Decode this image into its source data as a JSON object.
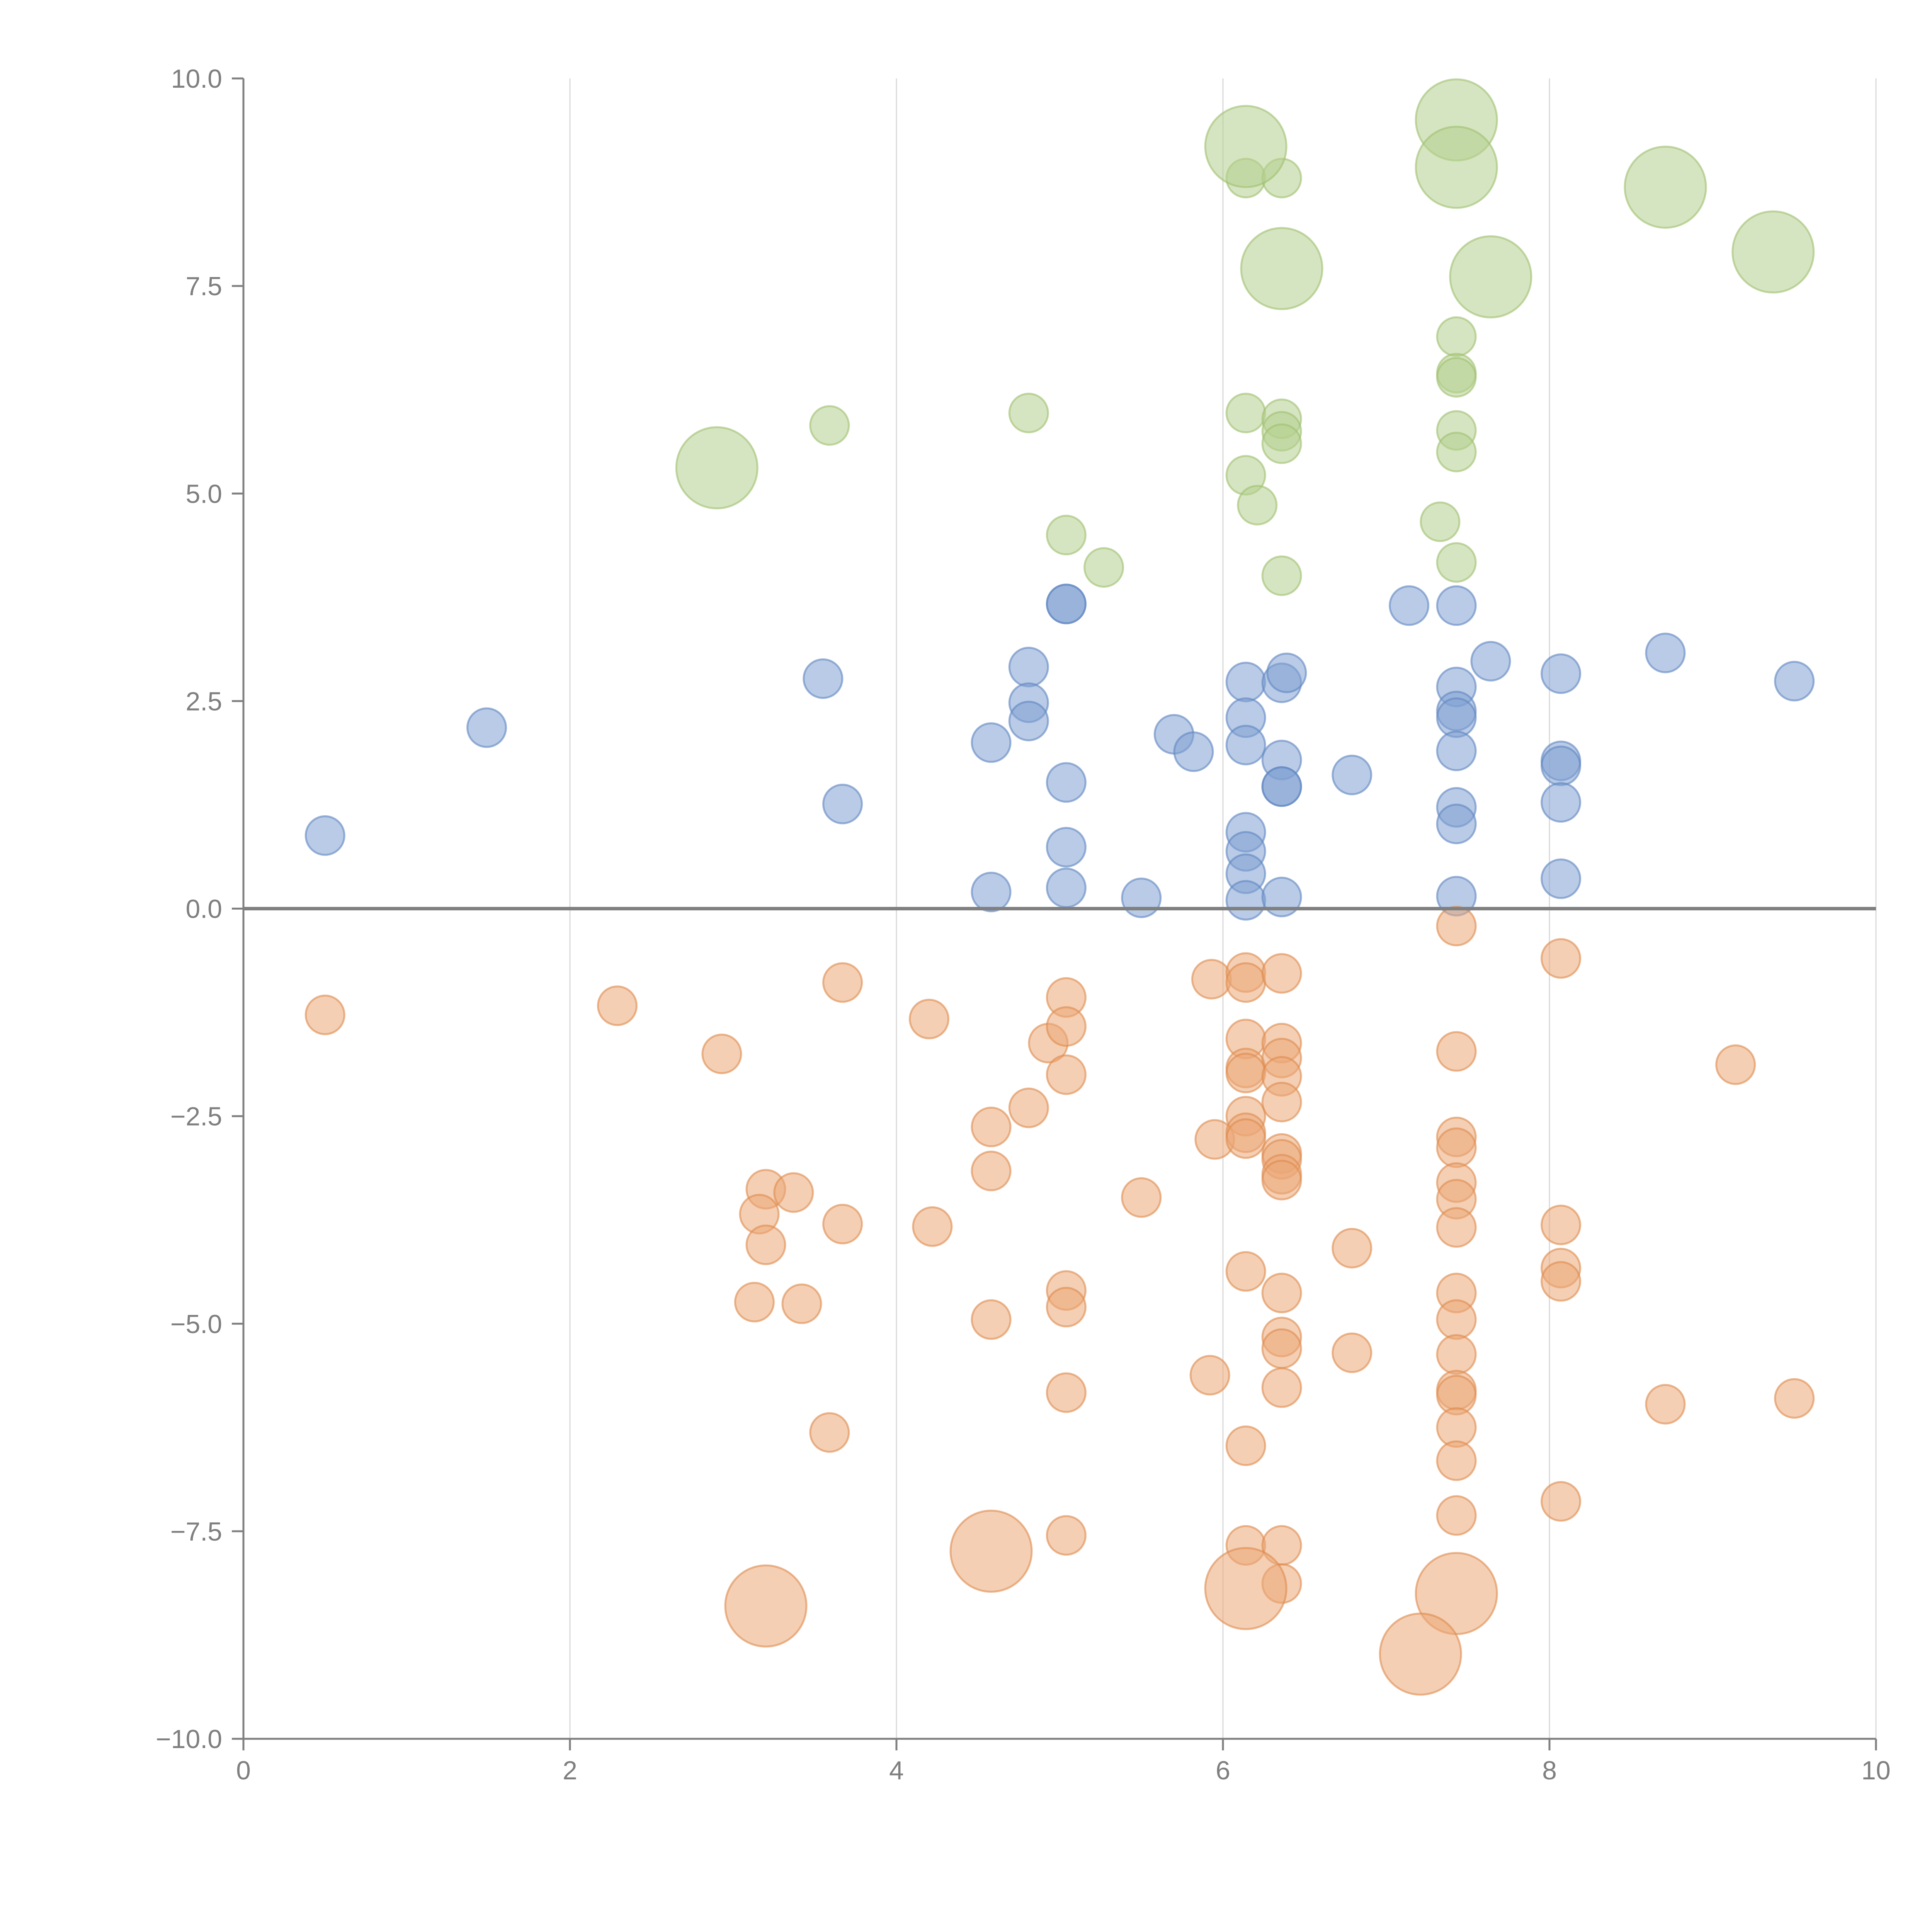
{
  "chart_data": {
    "type": "scatter",
    "title": "",
    "xlabel": "",
    "ylabel": "",
    "xlim": [
      0,
      10
    ],
    "ylim": [
      -10,
      10
    ],
    "x_ticks": [
      "0",
      "2",
      "4",
      "6",
      "8",
      "10"
    ],
    "y_ticks": [
      "10.0",
      "7.5",
      "5.0",
      "2.5",
      "0.0",
      "−2.5",
      "−5.0",
      "−7.5",
      "−10.0"
    ],
    "x_tick_values": [
      0,
      2,
      4,
      6,
      8,
      10
    ],
    "y_tick_values": [
      10,
      7.5,
      5,
      2.5,
      0,
      -2.5,
      -5,
      -7.5,
      -10
    ],
    "grid": "vertical",
    "reference_line_y": 0,
    "colors": {
      "blue": "#7fa1d2",
      "blue_edge": "#5f86c2",
      "orange": "#eba877",
      "orange_edge": "#dd8a4d",
      "green": "#b5d08e",
      "green_edge": "#9fc06f",
      "axis": "#808080",
      "grid": "#d9d9d9",
      "text": "#7f7f7f"
    },
    "series": [
      {
        "name": "blue",
        "color": "blue",
        "points": [
          [
            0.5,
            0.88,
            1
          ],
          [
            1.49,
            2.18,
            1
          ],
          [
            3.55,
            2.77,
            1
          ],
          [
            3.67,
            1.26,
            1
          ],
          [
            4.58,
            2.0,
            1
          ],
          [
            4.58,
            0.2,
            1
          ],
          [
            4.81,
            2.91,
            1
          ],
          [
            4.81,
            2.48,
            1
          ],
          [
            4.81,
            2.26,
            1
          ],
          [
            5.04,
            3.67,
            1
          ],
          [
            5.04,
            3.67,
            1
          ],
          [
            5.04,
            1.52,
            1
          ],
          [
            5.04,
            0.74,
            1
          ],
          [
            5.04,
            0.25,
            1
          ],
          [
            5.5,
            0.13,
            1
          ],
          [
            5.7,
            2.1,
            1
          ],
          [
            5.82,
            1.89,
            1
          ],
          [
            6.14,
            2.73,
            1
          ],
          [
            6.14,
            2.3,
            1
          ],
          [
            6.14,
            1.97,
            1
          ],
          [
            6.14,
            0.92,
            1
          ],
          [
            6.14,
            0.69,
            1
          ],
          [
            6.14,
            0.42,
            1
          ],
          [
            6.14,
            0.1,
            1
          ],
          [
            6.36,
            2.72,
            1
          ],
          [
            6.39,
            2.84,
            1
          ],
          [
            6.36,
            1.79,
            1
          ],
          [
            6.36,
            1.47,
            1
          ],
          [
            6.36,
            1.47,
            1
          ],
          [
            6.36,
            0.14,
            1
          ],
          [
            6.79,
            1.61,
            1
          ],
          [
            7.14,
            3.65,
            1
          ],
          [
            7.43,
            3.65,
            1
          ],
          [
            7.43,
            2.67,
            1
          ],
          [
            7.43,
            2.38,
            1
          ],
          [
            7.43,
            2.3,
            1
          ],
          [
            7.43,
            1.9,
            1
          ],
          [
            7.43,
            1.22,
            1
          ],
          [
            7.43,
            1.02,
            1
          ],
          [
            7.43,
            0.15,
            1
          ],
          [
            7.64,
            2.98,
            1
          ],
          [
            8.07,
            2.83,
            1
          ],
          [
            8.07,
            1.78,
            1
          ],
          [
            8.07,
            1.72,
            1
          ],
          [
            8.07,
            1.28,
            1
          ],
          [
            8.07,
            0.36,
            1
          ],
          [
            8.71,
            3.08,
            1
          ],
          [
            9.5,
            2.74,
            1
          ]
        ]
      },
      {
        "name": "orange",
        "color": "orange",
        "points": [
          [
            0.5,
            -1.28,
            1
          ],
          [
            2.29,
            -1.17,
            1
          ],
          [
            2.93,
            -1.75,
            1
          ],
          [
            3.2,
            -3.38,
            1
          ],
          [
            3.16,
            -3.68,
            1
          ],
          [
            3.37,
            -3.42,
            1
          ],
          [
            3.2,
            -4.05,
            1
          ],
          [
            3.13,
            -4.74,
            1
          ],
          [
            3.42,
            -4.76,
            1
          ],
          [
            3.59,
            -6.31,
            1
          ],
          [
            3.67,
            -0.89,
            1
          ],
          [
            3.67,
            -3.8,
            1
          ],
          [
            4.2,
            -1.33,
            1
          ],
          [
            4.22,
            -3.83,
            1
          ],
          [
            4.58,
            -2.63,
            1
          ],
          [
            4.58,
            -3.16,
            1
          ],
          [
            4.58,
            -4.95,
            1
          ],
          [
            4.81,
            -2.4,
            1
          ],
          [
            4.93,
            -1.62,
            1
          ],
          [
            5.04,
            -1.07,
            1
          ],
          [
            5.04,
            -1.42,
            1
          ],
          [
            5.04,
            -2.0,
            1
          ],
          [
            5.04,
            -4.6,
            1
          ],
          [
            5.04,
            -4.8,
            1
          ],
          [
            5.04,
            -5.83,
            1
          ],
          [
            5.04,
            -7.55,
            1
          ],
          [
            5.5,
            -3.48,
            1
          ],
          [
            5.93,
            -0.85,
            1
          ],
          [
            5.95,
            -2.78,
            1
          ],
          [
            5.92,
            -5.62,
            1
          ],
          [
            6.14,
            -0.77,
            1
          ],
          [
            6.14,
            -0.89,
            1
          ],
          [
            6.14,
            -1.57,
            1
          ],
          [
            6.14,
            -1.92,
            1
          ],
          [
            6.14,
            -1.98,
            1
          ],
          [
            6.14,
            -2.5,
            1
          ],
          [
            6.14,
            -2.7,
            1
          ],
          [
            6.14,
            -2.77,
            1
          ],
          [
            6.14,
            -4.37,
            1
          ],
          [
            6.14,
            -6.47,
            1
          ],
          [
            6.14,
            -7.67,
            1
          ],
          [
            6.36,
            -0.78,
            1
          ],
          [
            6.36,
            -1.62,
            1
          ],
          [
            6.36,
            -1.8,
            1
          ],
          [
            6.36,
            -2.02,
            1
          ],
          [
            6.36,
            -2.33,
            1
          ],
          [
            6.36,
            -2.95,
            1
          ],
          [
            6.36,
            -3.02,
            1
          ],
          [
            6.36,
            -3.2,
            1
          ],
          [
            6.36,
            -3.27,
            1
          ],
          [
            6.36,
            -4.63,
            1
          ],
          [
            6.36,
            -5.16,
            1
          ],
          [
            6.36,
            -5.3,
            1
          ],
          [
            6.36,
            -5.77,
            1
          ],
          [
            6.36,
            -7.67,
            1
          ],
          [
            6.36,
            -8.13,
            1
          ],
          [
            6.79,
            -4.09,
            1
          ],
          [
            6.79,
            -5.35,
            1
          ],
          [
            7.43,
            -0.21,
            1
          ],
          [
            7.43,
            -1.72,
            1
          ],
          [
            7.43,
            -2.75,
            1
          ],
          [
            7.43,
            -2.88,
            1
          ],
          [
            7.43,
            -3.3,
            1
          ],
          [
            7.43,
            -3.5,
            1
          ],
          [
            7.43,
            -3.84,
            1
          ],
          [
            7.43,
            -4.63,
            1
          ],
          [
            7.43,
            -4.95,
            1
          ],
          [
            7.43,
            -5.37,
            1
          ],
          [
            7.43,
            -5.8,
            1
          ],
          [
            7.43,
            -5.86,
            1
          ],
          [
            7.43,
            -6.25,
            1
          ],
          [
            7.43,
            -6.65,
            1
          ],
          [
            7.43,
            -7.31,
            1
          ],
          [
            8.07,
            -0.6,
            1
          ],
          [
            8.07,
            -3.81,
            1
          ],
          [
            8.07,
            -4.33,
            1
          ],
          [
            8.07,
            -4.49,
            1
          ],
          [
            8.07,
            -7.14,
            1
          ],
          [
            8.71,
            -5.97,
            1
          ],
          [
            9.14,
            -1.88,
            1
          ],
          [
            9.5,
            -5.9,
            1
          ],
          [
            3.2,
            -8.4,
            2.1
          ],
          [
            4.58,
            -7.74,
            2.1
          ],
          [
            6.14,
            -8.19,
            2.1
          ],
          [
            7.43,
            -8.25,
            2.1
          ],
          [
            7.21,
            -8.98,
            2.1
          ]
        ]
      },
      {
        "name": "green",
        "color": "green",
        "points": [
          [
            3.59,
            5.82,
            1
          ],
          [
            4.81,
            5.97,
            1
          ],
          [
            5.04,
            4.5,
            1
          ],
          [
            5.27,
            4.11,
            1
          ],
          [
            6.14,
            5.97,
            1
          ],
          [
            6.14,
            5.22,
            1
          ],
          [
            6.14,
            8.8,
            1
          ],
          [
            6.21,
            4.86,
            1
          ],
          [
            6.36,
            8.8,
            1
          ],
          [
            6.36,
            5.9,
            1
          ],
          [
            6.36,
            5.75,
            1
          ],
          [
            6.36,
            5.6,
            1
          ],
          [
            6.36,
            4.01,
            1
          ],
          [
            7.33,
            4.66,
            1
          ],
          [
            7.43,
            6.89,
            1
          ],
          [
            7.43,
            6.45,
            1
          ],
          [
            7.43,
            6.4,
            1
          ],
          [
            7.43,
            5.76,
            1
          ],
          [
            7.43,
            5.5,
            1
          ],
          [
            7.43,
            4.17,
            1
          ],
          [
            2.9,
            5.31,
            2.1
          ],
          [
            6.14,
            9.18,
            2.1
          ],
          [
            6.36,
            7.71,
            2.1
          ],
          [
            7.43,
            9.5,
            2.1
          ],
          [
            7.43,
            8.93,
            2.1
          ],
          [
            7.64,
            7.61,
            2.1
          ],
          [
            8.71,
            8.69,
            2.1
          ],
          [
            9.37,
            7.91,
            2.1
          ]
        ]
      }
    ]
  }
}
